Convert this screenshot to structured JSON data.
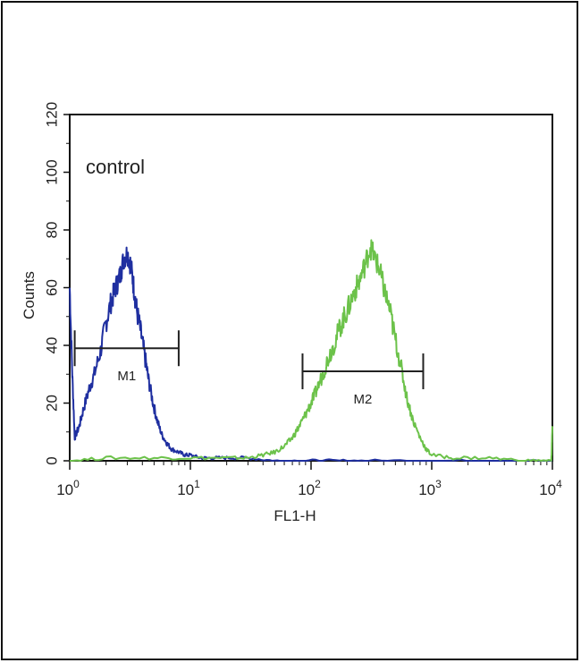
{
  "chart_data": {
    "type": "line",
    "annotation": "control",
    "xlabel": "FL1-H",
    "ylabel": "Counts",
    "x_scale": "log",
    "xlim": [
      1,
      10000
    ],
    "ylim": [
      0,
      120
    ],
    "x_ticks": [
      {
        "value": 1,
        "base": "10",
        "exp": "0"
      },
      {
        "value": 10,
        "base": "10",
        "exp": "1"
      },
      {
        "value": 100,
        "base": "10",
        "exp": "2"
      },
      {
        "value": 1000,
        "base": "10",
        "exp": "3"
      },
      {
        "value": 10000,
        "base": "10",
        "exp": "4"
      }
    ],
    "y_ticks": [
      0,
      20,
      40,
      60,
      80,
      100,
      120
    ],
    "grid": false,
    "colors": {
      "blue": "#1f2fa0",
      "green": "#6cc24a",
      "axis": "#111111"
    },
    "series": [
      {
        "color": "#1f2fa0",
        "x": [
          1.0,
          1.05,
          1.1,
          1.2,
          1.3,
          1.45,
          1.6,
          1.8,
          2.0,
          2.2,
          2.4,
          2.6,
          2.8,
          3.0,
          3.2,
          3.4,
          3.6,
          3.9,
          4.2,
          4.5,
          4.9,
          5.3,
          5.8,
          6.4,
          7.0,
          8.0,
          9.0,
          10.0,
          12.0,
          15.0,
          20.0,
          30.0,
          50.0,
          80.0,
          150.0,
          300.0,
          1000.0,
          3000.0,
          10000.0
        ],
        "y": [
          60,
          30,
          8,
          12,
          18,
          25,
          30,
          38,
          48,
          55,
          60,
          64,
          70,
          72,
          68,
          60,
          52,
          44,
          36,
          28,
          20,
          14,
          9,
          6,
          4,
          3,
          2,
          2,
          1,
          1,
          1,
          1,
          0,
          0,
          0,
          0,
          0,
          0,
          0
        ]
      },
      {
        "color": "#6cc24a",
        "x": [
          1.0,
          2.0,
          5.0,
          10.0,
          20.0,
          30.0,
          40.0,
          50.0,
          60.0,
          70.0,
          80.0,
          90.0,
          100.0,
          110.0,
          125.0,
          140.0,
          160.0,
          180.0,
          200.0,
          225.0,
          250.0,
          280.0,
          310.0,
          340.0,
          370.0,
          400.0,
          450.0,
          500.0,
          560.0,
          620.0,
          700.0,
          800.0,
          900.0,
          1000.0,
          1500.0,
          3000.0,
          6000.0,
          9800.0,
          10000.0
        ],
        "y": [
          0,
          1,
          1,
          1,
          1,
          1,
          2,
          3,
          5,
          8,
          12,
          16,
          20,
          24,
          30,
          36,
          42,
          48,
          52,
          58,
          62,
          68,
          74,
          70,
          66,
          60,
          52,
          42,
          32,
          22,
          14,
          8,
          4,
          2,
          1,
          1,
          0,
          0,
          12
        ]
      }
    ],
    "markers": [
      {
        "label": "M1",
        "x_start": 1.1,
        "x_end": 8.0,
        "y": 39
      },
      {
        "label": "M2",
        "x_start": 85.0,
        "x_end": 850.0,
        "y": 31
      }
    ]
  }
}
